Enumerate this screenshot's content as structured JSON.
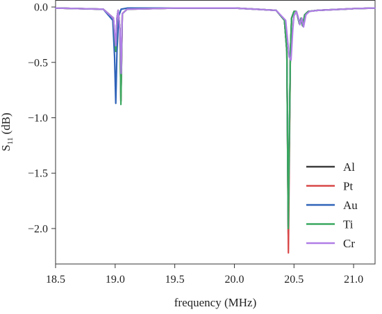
{
  "chart_data": {
    "type": "line",
    "xlabel": "frequency (MHz)",
    "ylabel": {
      "base": "S",
      "sub": "11",
      "unit": " (dB)"
    },
    "xlim": [
      18.5,
      21.18
    ],
    "ylim": [
      -2.32,
      0.06
    ],
    "xticks": [
      {
        "value": 18.5,
        "label": "18.5"
      },
      {
        "value": 19.0,
        "label": "19.0"
      },
      {
        "value": 19.5,
        "label": "19.5"
      },
      {
        "value": 20.0,
        "label": "20.0"
      },
      {
        "value": 20.5,
        "label": "20.5"
      },
      {
        "value": 21.0,
        "label": "21.0"
      }
    ],
    "yticks": [
      {
        "value": 0.0,
        "label": "0.0"
      },
      {
        "value": -0.5,
        "label": "−0.5"
      },
      {
        "value": -1.0,
        "label": "−1.0"
      },
      {
        "value": -1.5,
        "label": "−1.5"
      },
      {
        "value": -2.0,
        "label": "−2.0"
      }
    ],
    "grid": false,
    "legend_position": "bottom-right",
    "series": [
      {
        "name": "Al",
        "color": "#3a3a3a",
        "x": [
          18.5,
          18.9,
          18.985,
          19.005,
          19.015,
          19.025,
          19.04,
          19.048,
          19.06,
          19.1,
          19.5,
          20.0,
          20.35,
          20.42,
          20.44,
          20.452,
          20.47,
          20.48,
          20.5,
          20.52,
          20.53,
          20.545,
          20.56,
          20.572,
          20.59,
          20.62,
          20.7,
          21.0,
          21.18
        ],
        "y": [
          -0.01,
          -0.02,
          -0.1,
          -0.4,
          -0.1,
          -0.03,
          -0.2,
          -0.85,
          -0.06,
          -0.02,
          -0.01,
          -0.01,
          -0.03,
          -0.12,
          -0.4,
          -2.05,
          -0.4,
          -0.1,
          -0.04,
          -0.04,
          -0.08,
          -0.15,
          -0.1,
          -0.17,
          -0.07,
          -0.04,
          -0.03,
          -0.015,
          -0.01
        ]
      },
      {
        "name": "Pt",
        "color": "#d94848",
        "x": [
          18.5,
          18.9,
          18.985,
          19.005,
          19.015,
          19.025,
          19.04,
          19.048,
          19.06,
          19.1,
          19.5,
          20.0,
          20.35,
          20.42,
          20.44,
          20.453,
          20.47,
          20.48,
          20.5,
          20.52,
          20.53,
          20.545,
          20.56,
          20.572,
          20.59,
          20.62,
          20.7,
          21.0,
          21.18
        ],
        "y": [
          -0.01,
          -0.02,
          -0.1,
          -0.4,
          -0.1,
          -0.03,
          -0.2,
          -0.85,
          -0.06,
          -0.02,
          -0.01,
          -0.01,
          -0.03,
          -0.12,
          -0.4,
          -2.22,
          -0.4,
          -0.1,
          -0.04,
          -0.04,
          -0.08,
          -0.15,
          -0.1,
          -0.17,
          -0.07,
          -0.04,
          -0.03,
          -0.015,
          -0.01
        ]
      },
      {
        "name": "Au",
        "color": "#2f63b8",
        "x": [
          18.5,
          18.9,
          18.98,
          18.995,
          19.005,
          19.015,
          19.03,
          19.05,
          19.1,
          19.5,
          20.0,
          20.35,
          20.42,
          20.44,
          20.452,
          20.47,
          20.48,
          20.5,
          20.52,
          20.53,
          20.545,
          20.56,
          20.572,
          20.59,
          20.62,
          20.7,
          21.0,
          21.18
        ],
        "y": [
          -0.01,
          -0.02,
          -0.12,
          -0.45,
          -0.87,
          -0.4,
          -0.08,
          -0.02,
          -0.01,
          -0.01,
          -0.01,
          -0.03,
          -0.12,
          -0.4,
          -1.98,
          -0.4,
          -0.1,
          -0.04,
          -0.04,
          -0.08,
          -0.15,
          -0.1,
          -0.17,
          -0.07,
          -0.04,
          -0.03,
          -0.015,
          -0.01
        ]
      },
      {
        "name": "Ti",
        "color": "#3aa860",
        "x": [
          18.5,
          18.9,
          18.985,
          19.005,
          19.015,
          19.025,
          19.04,
          19.048,
          19.06,
          19.1,
          19.5,
          20.0,
          20.35,
          20.42,
          20.44,
          20.452,
          20.47,
          20.48,
          20.5,
          20.52,
          20.53,
          20.545,
          20.56,
          20.572,
          20.59,
          20.62,
          20.7,
          21.0,
          21.18
        ],
        "y": [
          -0.01,
          -0.02,
          -0.1,
          -0.4,
          -0.1,
          -0.03,
          -0.2,
          -0.88,
          -0.06,
          -0.02,
          -0.01,
          -0.01,
          -0.03,
          -0.12,
          -0.4,
          -2.0,
          -0.4,
          -0.1,
          -0.04,
          -0.04,
          -0.08,
          -0.15,
          -0.1,
          -0.17,
          -0.07,
          -0.04,
          -0.03,
          -0.015,
          -0.01
        ]
      },
      {
        "name": "Cr",
        "color": "#b07ee6",
        "x": [
          18.5,
          18.9,
          18.985,
          19.005,
          19.015,
          19.025,
          19.04,
          19.05,
          19.06,
          19.1,
          19.5,
          20.0,
          20.35,
          20.43,
          20.46,
          20.475,
          20.49,
          20.5,
          20.52,
          20.535,
          20.55,
          20.565,
          20.58,
          20.6,
          20.63,
          20.7,
          21.0,
          21.18
        ],
        "y": [
          -0.01,
          -0.02,
          -0.1,
          -0.35,
          -0.1,
          -0.03,
          -0.2,
          -0.6,
          -0.06,
          -0.02,
          -0.01,
          -0.01,
          -0.03,
          -0.12,
          -0.45,
          -0.48,
          -0.2,
          -0.08,
          -0.04,
          -0.09,
          -0.16,
          -0.1,
          -0.18,
          -0.07,
          -0.04,
          -0.03,
          -0.015,
          -0.01
        ]
      }
    ]
  }
}
